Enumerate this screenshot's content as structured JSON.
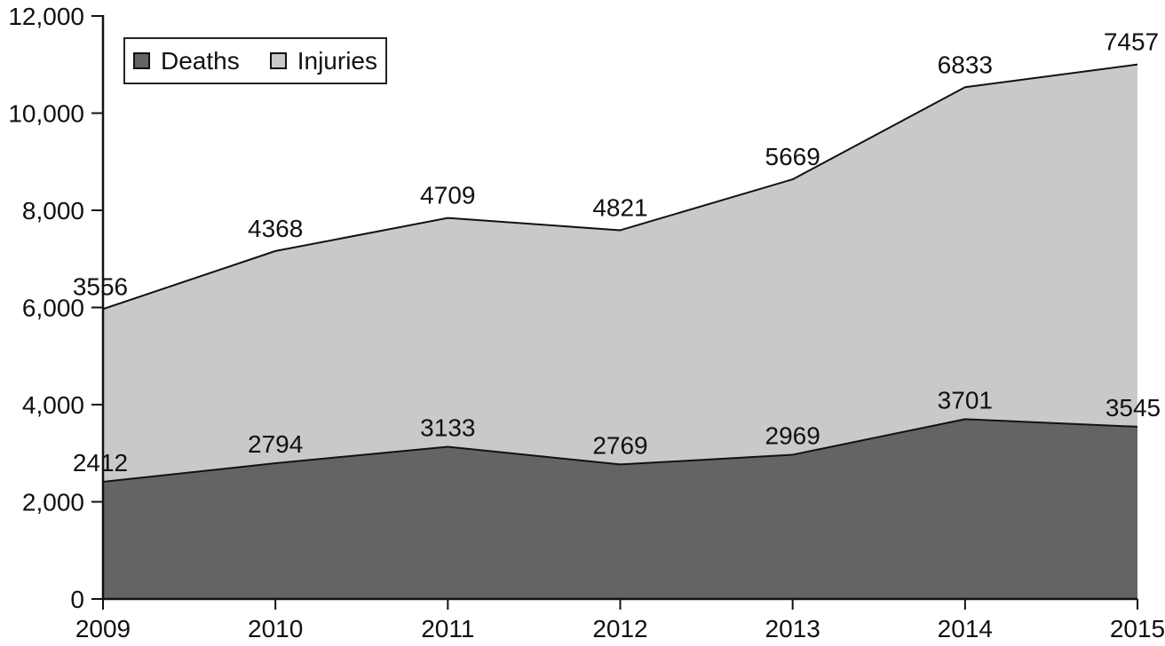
{
  "chart_data": {
    "type": "area",
    "stacked": true,
    "categories": [
      "2009",
      "2010",
      "2011",
      "2012",
      "2013",
      "2014",
      "2015"
    ],
    "series": [
      {
        "name": "Deaths",
        "color": "#646464",
        "values": [
          2412,
          2794,
          3133,
          2769,
          2969,
          3701,
          3545
        ]
      },
      {
        "name": "Injuries",
        "color": "#c9c9c9",
        "values": [
          3556,
          4368,
          4709,
          4821,
          5669,
          6833,
          7457
        ]
      }
    ],
    "stacked_totals": [
      5968,
      7162,
      7842,
      7590,
      8638,
      10534,
      11002
    ],
    "title": "",
    "xlabel": "",
    "ylabel": "",
    "ylim": [
      0,
      12000
    ],
    "ytick_step": 2000,
    "ytick_labels": [
      "0",
      "2,000",
      "4,000",
      "6,000",
      "8,000",
      "10,000",
      "12,000"
    ],
    "grid": false,
    "data_labels": true,
    "legend_position": "top-left",
    "line_color": "#111111"
  },
  "legend": {
    "deaths_label": "Deaths",
    "injuries_label": "Injuries"
  }
}
